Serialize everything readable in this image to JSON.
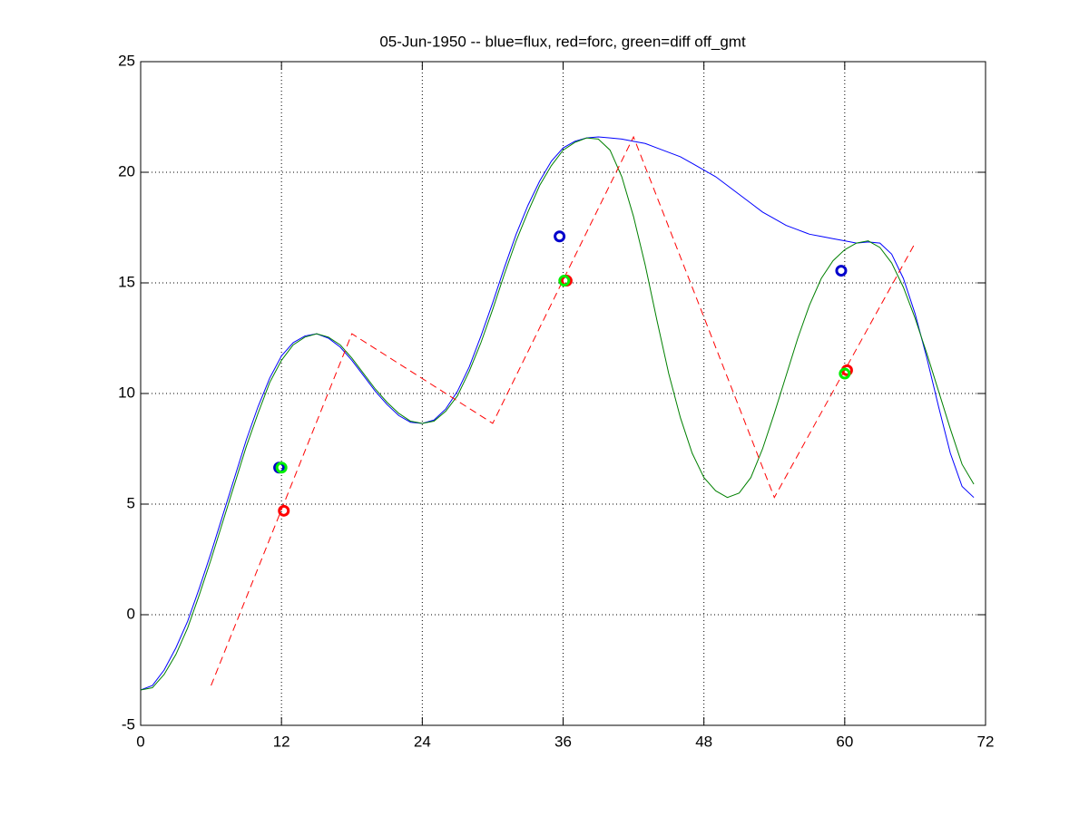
{
  "chart_data": {
    "type": "line",
    "title": "05-Jun-1950 -- blue=flux, red=forc, green=diff off_gmt",
    "xlim": [
      0,
      72
    ],
    "xticks": [
      0,
      12,
      24,
      36,
      48,
      60,
      72
    ],
    "ylim": [
      -5,
      25
    ],
    "yticks": [
      -5,
      0,
      5,
      10,
      15,
      20,
      25
    ],
    "grid": true,
    "series": [
      {
        "color": "#0000ff",
        "style": "solid",
        "x": [
          0,
          1,
          2,
          3,
          4,
          5,
          6,
          7,
          8,
          9,
          10,
          11,
          12,
          13,
          14,
          15,
          16,
          17,
          18,
          19,
          20,
          21,
          22,
          23,
          24,
          25,
          26,
          27,
          28,
          29,
          30,
          31,
          32,
          33,
          34,
          35,
          36,
          37,
          38,
          39,
          40,
          41,
          42,
          43,
          44,
          45,
          46,
          47,
          48,
          49,
          50,
          51,
          52,
          53,
          54,
          55,
          56,
          57,
          58,
          59,
          60,
          61,
          62,
          63,
          64,
          65,
          66,
          67,
          68,
          69,
          70,
          71
        ],
        "values": [
          -3.4,
          -3.2,
          -2.5,
          -1.5,
          -0.3,
          1.2,
          2.8,
          4.5,
          6.2,
          7.9,
          9.4,
          10.7,
          11.7,
          12.3,
          12.6,
          12.7,
          12.5,
          12.1,
          11.5,
          10.8,
          10.1,
          9.5,
          9.0,
          8.7,
          8.65,
          8.8,
          9.3,
          10.1,
          11.2,
          12.6,
          14.1,
          15.7,
          17.2,
          18.5,
          19.6,
          20.5,
          21.1,
          21.4,
          21.55,
          21.6,
          21.55,
          21.5,
          21.4,
          21.3,
          21.1,
          20.9,
          20.7,
          20.4,
          20.1,
          19.8,
          19.4,
          19.0,
          18.6,
          18.2,
          17.9,
          17.6,
          17.4,
          17.2,
          17.1,
          17.0,
          16.9,
          16.8,
          16.85,
          16.8,
          16.3,
          15.2,
          13.6,
          11.6,
          9.4,
          7.3,
          5.8,
          5.3
        ]
      },
      {
        "color": "#008000",
        "style": "solid",
        "x": [
          0,
          1,
          2,
          3,
          4,
          5,
          6,
          7,
          8,
          9,
          10,
          11,
          12,
          13,
          14,
          15,
          16,
          17,
          18,
          19,
          20,
          21,
          22,
          23,
          24,
          25,
          26,
          27,
          28,
          29,
          30,
          31,
          32,
          33,
          34,
          35,
          36,
          37,
          38,
          39,
          40,
          41,
          42,
          43,
          44,
          45,
          46,
          47,
          48,
          49,
          50,
          51,
          52,
          53,
          54,
          55,
          56,
          57,
          58,
          59,
          60,
          61,
          62,
          63,
          64,
          65,
          66,
          67,
          68,
          69,
          70,
          71
        ],
        "values": [
          -3.4,
          -3.3,
          -2.7,
          -1.8,
          -0.6,
          0.9,
          2.5,
          4.2,
          5.9,
          7.6,
          9.1,
          10.5,
          11.5,
          12.2,
          12.55,
          12.7,
          12.55,
          12.2,
          11.6,
          10.9,
          10.2,
          9.6,
          9.1,
          8.75,
          8.65,
          8.75,
          9.2,
          9.9,
          11.0,
          12.3,
          13.8,
          15.4,
          16.9,
          18.2,
          19.4,
          20.3,
          21.0,
          21.35,
          21.55,
          21.5,
          21.0,
          19.8,
          18.0,
          15.8,
          13.3,
          10.9,
          8.9,
          7.3,
          6.2,
          5.6,
          5.3,
          5.5,
          6.2,
          7.5,
          9.1,
          10.8,
          12.5,
          14.0,
          15.2,
          16.0,
          16.5,
          16.8,
          16.9,
          16.6,
          15.9,
          14.8,
          13.4,
          11.8,
          10.1,
          8.4,
          6.8,
          5.9
        ]
      },
      {
        "color": "#ff0000",
        "style": "dashed",
        "x": [
          6,
          18,
          30,
          42,
          54,
          66
        ],
        "values": [
          -3.2,
          12.7,
          8.65,
          21.6,
          5.3,
          16.8
        ]
      },
      {
        "color": "#0000cc",
        "style": "none",
        "marker": "circle",
        "x": [
          11.8,
          35.7,
          59.7
        ],
        "values": [
          6.65,
          17.1,
          15.55
        ]
      },
      {
        "color": "#ff0000",
        "style": "none",
        "marker": "circle",
        "x": [
          12.2,
          36.3,
          60.2
        ],
        "values": [
          4.7,
          15.1,
          11.05
        ]
      },
      {
        "color": "#00ee00",
        "style": "none",
        "marker": "circle",
        "x": [
          12.0,
          36.1,
          60.0
        ],
        "values": [
          6.65,
          15.1,
          10.9
        ]
      }
    ]
  }
}
